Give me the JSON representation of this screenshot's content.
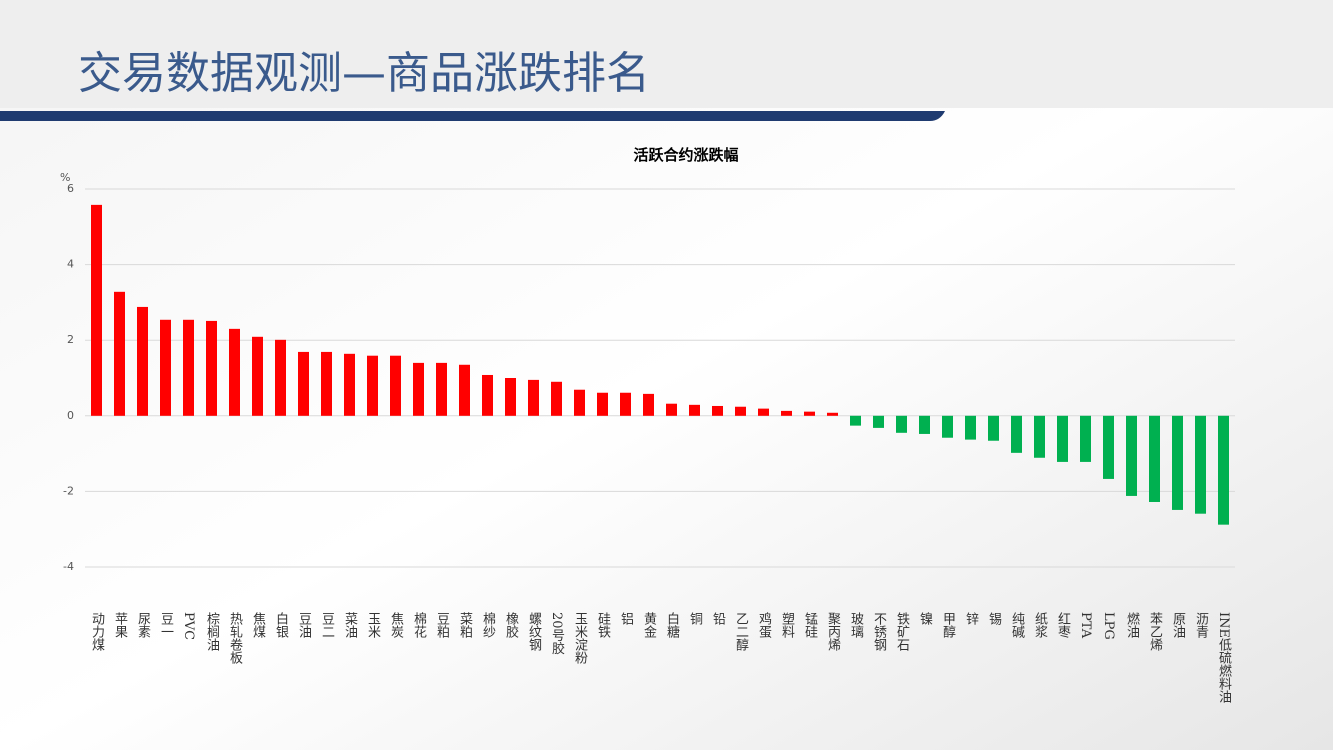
{
  "header": {
    "title": "交易数据观测—商品涨跌排名"
  },
  "chart_data": {
    "type": "bar",
    "title": "活跃合约涨跌幅",
    "y_label": "%",
    "categories": [
      "动力煤",
      "苹果",
      "尿素",
      "豆一",
      "PVC",
      "棕榈油",
      "热轧卷板",
      "焦煤",
      "白银",
      "豆油",
      "豆二",
      "菜油",
      "玉米",
      "焦炭",
      "棉花",
      "豆粕",
      "菜粕",
      "棉纱",
      "橡胶",
      "螺纹钢",
      "20号胶",
      "玉米淀粉",
      "硅铁",
      "铝",
      "黄金",
      "白糖",
      "铜",
      "铅",
      "乙二醇",
      "鸡蛋",
      "塑料",
      "锰硅",
      "聚丙烯",
      "玻璃",
      "不锈钢",
      "铁矿石",
      "镍",
      "甲醇",
      "锌",
      "锡",
      "纯碱",
      "纸浆",
      "红枣",
      "PTA",
      "LPG",
      "燃油",
      "苯乙烯",
      "原油",
      "沥青",
      "INE低硫燃料油"
    ],
    "values": [
      5.58,
      3.28,
      2.88,
      2.54,
      2.54,
      2.51,
      2.3,
      2.09,
      2.01,
      1.69,
      1.69,
      1.64,
      1.59,
      1.59,
      1.4,
      1.4,
      1.35,
      1.08,
      1.0,
      0.95,
      0.9,
      0.69,
      0.61,
      0.61,
      0.58,
      0.32,
      0.29,
      0.26,
      0.24,
      0.19,
      0.13,
      0.11,
      0.08,
      -0.26,
      -0.32,
      -0.45,
      -0.48,
      -0.58,
      -0.63,
      -0.66,
      -0.98,
      -1.11,
      -1.22,
      -1.22,
      -1.67,
      -2.12,
      -2.28,
      -2.49,
      -2.59,
      -2.88
    ],
    "positive_color": "#ff0000",
    "negative_color": "#00b050",
    "ylim": [
      -4,
      6
    ],
    "yticks": [
      -4,
      -2,
      0,
      2,
      4,
      6
    ],
    "grid": true
  }
}
